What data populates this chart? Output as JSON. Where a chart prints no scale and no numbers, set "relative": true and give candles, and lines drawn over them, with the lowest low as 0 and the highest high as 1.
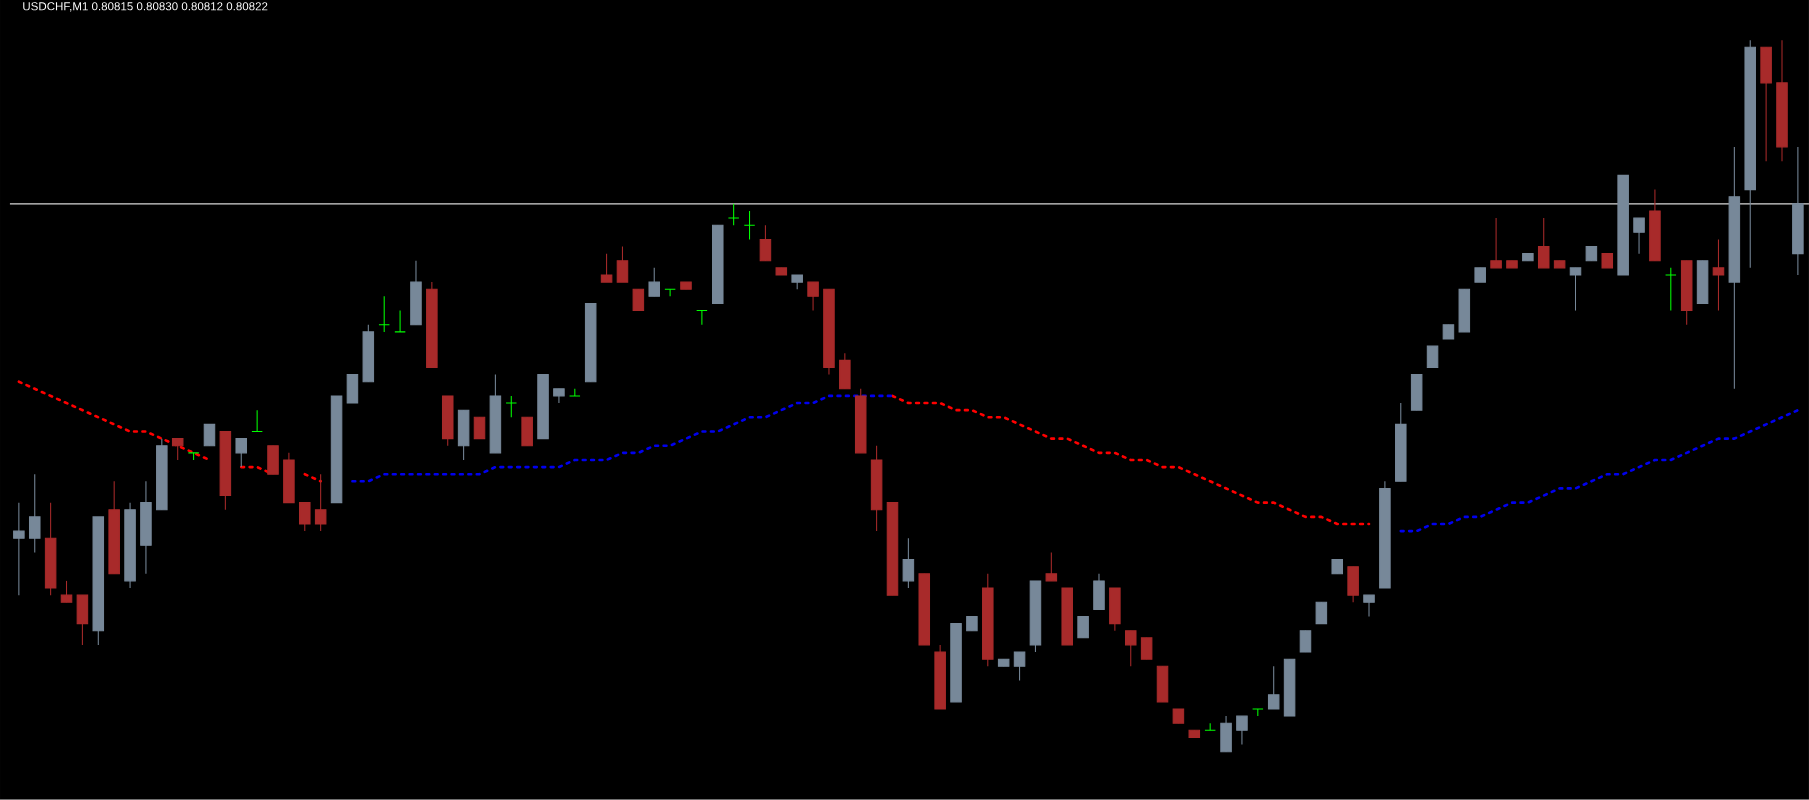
{
  "chart_data": {
    "type": "candlestick",
    "title": "USDCHF,M1  0.80815 0.80830 0.80812 0.80822",
    "relative": true,
    "categories": [
      null,
      null,
      null,
      null,
      null,
      null,
      null,
      null,
      null,
      null,
      null,
      null,
      null,
      null,
      null,
      null,
      null,
      null,
      null,
      null,
      null,
      null,
      null,
      null,
      null,
      null,
      null,
      null,
      null,
      null,
      null,
      null,
      null,
      null,
      null,
      null,
      null,
      null,
      null,
      null,
      null,
      null,
      null,
      null,
      null,
      null,
      null,
      null,
      null,
      null,
      null,
      null,
      null,
      null,
      null,
      null,
      null,
      null,
      null,
      null,
      null,
      null,
      null,
      null,
      null,
      null,
      null,
      null,
      null,
      null,
      null,
      null,
      null,
      null,
      null,
      null,
      null,
      null,
      null,
      null,
      null,
      null,
      null,
      null,
      null,
      null,
      null,
      null,
      null,
      null,
      null,
      null,
      null,
      null,
      null,
      null,
      null,
      null,
      null,
      null,
      null,
      null,
      null,
      null,
      null,
      null,
      null,
      null,
      null,
      null,
      null,
      null,
      null
    ],
    "ohlc": [
      [
        0.3,
        0.35,
        0.22,
        0.31
      ],
      [
        0.3,
        0.39,
        0.28,
        0.33
      ],
      [
        0.3,
        0.35,
        0.22,
        0.23
      ],
      [
        0.22,
        0.24,
        0.21,
        0.21
      ],
      [
        0.22,
        0.22,
        0.15,
        0.18
      ],
      [
        0.17,
        0.33,
        0.15,
        0.33
      ],
      [
        0.34,
        0.38,
        0.25,
        0.25
      ],
      [
        0.24,
        0.35,
        0.23,
        0.34
      ],
      [
        0.29,
        0.38,
        0.25,
        0.35
      ],
      [
        0.34,
        0.44,
        0.34,
        0.43
      ],
      [
        0.44,
        0.44,
        0.41,
        0.43
      ],
      [
        0.42,
        0.42,
        0.41,
        0.42
      ],
      [
        0.43,
        0.46,
        0.43,
        0.46
      ],
      [
        0.45,
        0.45,
        0.34,
        0.36
      ],
      [
        0.42,
        0.44,
        0.4,
        0.44
      ],
      [
        0.45,
        0.48,
        0.45,
        0.45
      ],
      [
        0.43,
        0.43,
        0.39,
        0.39
      ],
      [
        0.41,
        0.42,
        0.35,
        0.35
      ],
      [
        0.35,
        0.35,
        0.31,
        0.32
      ],
      [
        0.34,
        0.39,
        0.31,
        0.32
      ],
      [
        0.35,
        0.5,
        0.35,
        0.5
      ],
      [
        0.49,
        0.53,
        0.49,
        0.53
      ],
      [
        0.52,
        0.6,
        0.52,
        0.59
      ],
      [
        0.6,
        0.64,
        0.59,
        0.6
      ],
      [
        0.59,
        0.62,
        0.59,
        0.59
      ],
      [
        0.6,
        0.69,
        0.6,
        0.66
      ],
      [
        0.65,
        0.66,
        0.54,
        0.54
      ],
      [
        0.5,
        0.5,
        0.43,
        0.44
      ],
      [
        0.43,
        0.48,
        0.41,
        0.48
      ],
      [
        0.47,
        0.47,
        0.44,
        0.44
      ],
      [
        0.42,
        0.53,
        0.42,
        0.5
      ],
      [
        0.49,
        0.5,
        0.47,
        0.49
      ],
      [
        0.47,
        0.47,
        0.43,
        0.43
      ],
      [
        0.44,
        0.53,
        0.44,
        0.53
      ],
      [
        0.5,
        0.51,
        0.49,
        0.51
      ],
      [
        0.5,
        0.51,
        0.5,
        0.5
      ],
      [
        0.52,
        0.63,
        0.52,
        0.63
      ],
      [
        0.67,
        0.7,
        0.66,
        0.66
      ],
      [
        0.69,
        0.71,
        0.66,
        0.66
      ],
      [
        0.65,
        0.65,
        0.62,
        0.62
      ],
      [
        0.64,
        0.68,
        0.64,
        0.66
      ],
      [
        0.65,
        0.65,
        0.64,
        0.65
      ],
      [
        0.66,
        0.66,
        0.65,
        0.65
      ],
      [
        0.62,
        0.62,
        0.6,
        0.62
      ],
      [
        0.63,
        0.74,
        0.63,
        0.74
      ],
      [
        0.75,
        0.77,
        0.74,
        0.75
      ],
      [
        0.74,
        0.76,
        0.72,
        0.74
      ],
      [
        0.72,
        0.74,
        0.69,
        0.69
      ],
      [
        0.68,
        0.68,
        0.67,
        0.67
      ],
      [
        0.66,
        0.67,
        0.65,
        0.67
      ],
      [
        0.66,
        0.66,
        0.62,
        0.64
      ],
      [
        0.65,
        0.65,
        0.53,
        0.54
      ],
      [
        0.55,
        0.56,
        0.51,
        0.51
      ],
      [
        0.5,
        0.51,
        0.42,
        0.42
      ],
      [
        0.41,
        0.43,
        0.31,
        0.34
      ],
      [
        0.35,
        0.35,
        0.22,
        0.22
      ],
      [
        0.24,
        0.3,
        0.23,
        0.27
      ],
      [
        0.25,
        0.25,
        0.15,
        0.15
      ],
      [
        0.14,
        0.15,
        0.06,
        0.06
      ],
      [
        0.07,
        0.18,
        0.07,
        0.18
      ],
      [
        0.17,
        0.19,
        0.17,
        0.19
      ],
      [
        0.23,
        0.25,
        0.12,
        0.13
      ],
      [
        0.12,
        0.13,
        0.12,
        0.13
      ],
      [
        0.12,
        0.14,
        0.1,
        0.14
      ],
      [
        0.15,
        0.24,
        0.14,
        0.24
      ],
      [
        0.25,
        0.28,
        0.24,
        0.24
      ],
      [
        0.23,
        0.23,
        0.15,
        0.15
      ],
      [
        0.16,
        0.19,
        0.16,
        0.19
      ],
      [
        0.2,
        0.25,
        0.2,
        0.24
      ],
      [
        0.23,
        0.23,
        0.17,
        0.18
      ],
      [
        0.17,
        0.17,
        0.12,
        0.15
      ],
      [
        0.16,
        0.16,
        0.13,
        0.13
      ],
      [
        0.12,
        0.12,
        0.07,
        0.07
      ],
      [
        0.06,
        0.06,
        0.04,
        0.04
      ],
      [
        0.03,
        0.03,
        0.02,
        0.02
      ],
      [
        0.03,
        0.04,
        0.03,
        0.03
      ],
      [
        0.0,
        0.05,
        0.0,
        0.04
      ],
      [
        0.03,
        0.05,
        0.01,
        0.05
      ],
      [
        0.06,
        0.06,
        0.05,
        0.06
      ],
      [
        0.06,
        0.12,
        0.06,
        0.08
      ],
      [
        0.05,
        0.13,
        0.05,
        0.13
      ],
      [
        0.14,
        0.17,
        0.14,
        0.17
      ],
      [
        0.18,
        0.21,
        0.18,
        0.21
      ],
      [
        0.25,
        0.27,
        0.25,
        0.27
      ],
      [
        0.26,
        0.26,
        0.21,
        0.22
      ],
      [
        0.21,
        0.22,
        0.19,
        0.22
      ],
      [
        0.23,
        0.38,
        0.23,
        0.37
      ],
      [
        0.38,
        0.49,
        0.38,
        0.46
      ],
      [
        0.48,
        0.53,
        0.48,
        0.53
      ],
      [
        0.54,
        0.57,
        0.54,
        0.57
      ],
      [
        0.58,
        0.6,
        0.58,
        0.6
      ],
      [
        0.59,
        0.65,
        0.59,
        0.65
      ],
      [
        0.66,
        0.68,
        0.66,
        0.68
      ],
      [
        0.69,
        0.75,
        0.68,
        0.68
      ],
      [
        0.69,
        0.69,
        0.68,
        0.68
      ],
      [
        0.69,
        0.7,
        0.69,
        0.7
      ],
      [
        0.71,
        0.75,
        0.68,
        0.68
      ],
      [
        0.69,
        0.69,
        0.68,
        0.68
      ],
      [
        0.67,
        0.68,
        0.62,
        0.68
      ],
      [
        0.69,
        0.71,
        0.69,
        0.71
      ],
      [
        0.7,
        0.7,
        0.68,
        0.68
      ],
      [
        0.67,
        0.81,
        0.67,
        0.81
      ],
      [
        0.73,
        0.75,
        0.7,
        0.75
      ],
      [
        0.76,
        0.79,
        0.69,
        0.69
      ],
      [
        0.67,
        0.68,
        0.62,
        0.67
      ],
      [
        0.69,
        0.69,
        0.6,
        0.62
      ],
      [
        0.63,
        0.69,
        0.63,
        0.69
      ],
      [
        0.68,
        0.72,
        0.62,
        0.67
      ],
      [
        0.66,
        0.85,
        0.51,
        0.78
      ],
      [
        0.79,
        1.0,
        0.68,
        0.99
      ],
      [
        0.99,
        0.99,
        0.83,
        0.94
      ],
      [
        0.94,
        1.0,
        0.83,
        0.85
      ],
      [
        0.7,
        0.85,
        0.67,
        0.77
      ]
    ],
    "colors": [
      "#778899",
      "#778899",
      "#a82a2a",
      "#a82a2a",
      "#a82a2a",
      "#778899",
      "#a82a2a",
      "#778899",
      "#778899",
      "#778899",
      "#a82a2a",
      "#00ff00",
      "#778899",
      "#a82a2a",
      "#778899",
      "#00ff00",
      "#a82a2a",
      "#a82a2a",
      "#a82a2a",
      "#a82a2a",
      "#778899",
      "#778899",
      "#778899",
      "#00ff00",
      "#00ff00",
      "#778899",
      "#a82a2a",
      "#a82a2a",
      "#778899",
      "#a82a2a",
      "#778899",
      "#00ff00",
      "#a82a2a",
      "#778899",
      "#778899",
      "#00ff00",
      "#778899",
      "#a82a2a",
      "#a82a2a",
      "#a82a2a",
      "#778899",
      "#00ff00",
      "#a82a2a",
      "#00ff00",
      "#778899",
      "#00ff00",
      "#00ff00",
      "#a82a2a",
      "#a82a2a",
      "#778899",
      "#a82a2a",
      "#a82a2a",
      "#a82a2a",
      "#a82a2a",
      "#a82a2a",
      "#a82a2a",
      "#778899",
      "#a82a2a",
      "#a82a2a",
      "#778899",
      "#778899",
      "#a82a2a",
      "#778899",
      "#778899",
      "#778899",
      "#a82a2a",
      "#a82a2a",
      "#778899",
      "#778899",
      "#a82a2a",
      "#a82a2a",
      "#a82a2a",
      "#a82a2a",
      "#a82a2a",
      "#a82a2a",
      "#00ff00",
      "#778899",
      "#778899",
      "#00ff00",
      "#778899",
      "#778899",
      "#778899",
      "#778899",
      "#778899",
      "#a82a2a",
      "#778899",
      "#778899",
      "#778899",
      "#778899",
      "#778899",
      "#778899",
      "#778899",
      "#778899",
      "#a82a2a",
      "#a82a2a",
      "#778899",
      "#a82a2a",
      "#a82a2a",
      "#778899",
      "#778899",
      "#a82a2a",
      "#778899",
      "#778899",
      "#a82a2a",
      "#00ff00",
      "#a82a2a",
      "#778899",
      "#a82a2a",
      "#778899",
      "#778899",
      "#a82a2a",
      "#a82a2a",
      "#778899"
    ],
    "series": [
      {
        "type": "line",
        "color": "#ff0000",
        "line_style": "dotted",
        "values": [
          0.52,
          0.51,
          0.5,
          0.49,
          0.48,
          0.47,
          0.46,
          0.45,
          0.45,
          0.44,
          0.43,
          0.42,
          0.41,
          null,
          0.4,
          0.4,
          0.39,
          null,
          0.39,
          0.38,
          null,
          null,
          null,
          null,
          null,
          null,
          null,
          null,
          null,
          null,
          null,
          null,
          null,
          null,
          null,
          null,
          null,
          null,
          null,
          null,
          null,
          null,
          null,
          null,
          null,
          null,
          null,
          null,
          null,
          null,
          null,
          null,
          null,
          null,
          null,
          0.5,
          0.49,
          0.49,
          0.49,
          0.48,
          0.48,
          0.47,
          0.47,
          0.46,
          0.45,
          0.44,
          0.44,
          0.43,
          0.42,
          0.42,
          0.41,
          0.41,
          0.4,
          0.4,
          0.39,
          0.38,
          0.37,
          0.36,
          0.35,
          0.35,
          0.34,
          0.33,
          0.33,
          0.32,
          0.32,
          0.32,
          null,
          null,
          null,
          null,
          null,
          null,
          null,
          null,
          null,
          null,
          null,
          null,
          null,
          null,
          null,
          null,
          null,
          null,
          null,
          null,
          null,
          null,
          null,
          null,
          null,
          null,
          null
        ]
      },
      {
        "type": "line",
        "color": "#0000ee",
        "line_style": "dotted",
        "values": [
          null,
          null,
          null,
          null,
          null,
          null,
          null,
          null,
          null,
          null,
          null,
          null,
          null,
          null,
          null,
          null,
          null,
          null,
          null,
          null,
          null,
          0.38,
          0.38,
          0.39,
          0.39,
          0.39,
          0.39,
          0.39,
          0.39,
          0.39,
          0.4,
          0.4,
          0.4,
          0.4,
          0.4,
          0.41,
          0.41,
          0.41,
          0.42,
          0.42,
          0.43,
          0.43,
          0.44,
          0.45,
          0.45,
          0.46,
          0.47,
          0.47,
          0.48,
          0.49,
          0.49,
          0.5,
          0.5,
          0.5,
          0.5,
          0.5,
          null,
          null,
          null,
          null,
          null,
          null,
          null,
          null,
          null,
          null,
          null,
          null,
          null,
          null,
          null,
          null,
          null,
          null,
          null,
          null,
          null,
          null,
          null,
          null,
          null,
          null,
          null,
          null,
          null,
          null,
          null,
          0.31,
          0.31,
          0.32,
          0.32,
          0.33,
          0.33,
          0.34,
          0.35,
          0.35,
          0.36,
          0.37,
          0.37,
          0.38,
          0.39,
          0.39,
          0.4,
          0.41,
          0.41,
          0.42,
          0.43,
          0.44,
          0.44,
          0.45,
          0.46,
          0.47,
          0.48
        ]
      }
    ],
    "ref_lines": [
      {
        "axis": "y",
        "value": 0.77,
        "color": "#d8d8d8"
      }
    ]
  }
}
